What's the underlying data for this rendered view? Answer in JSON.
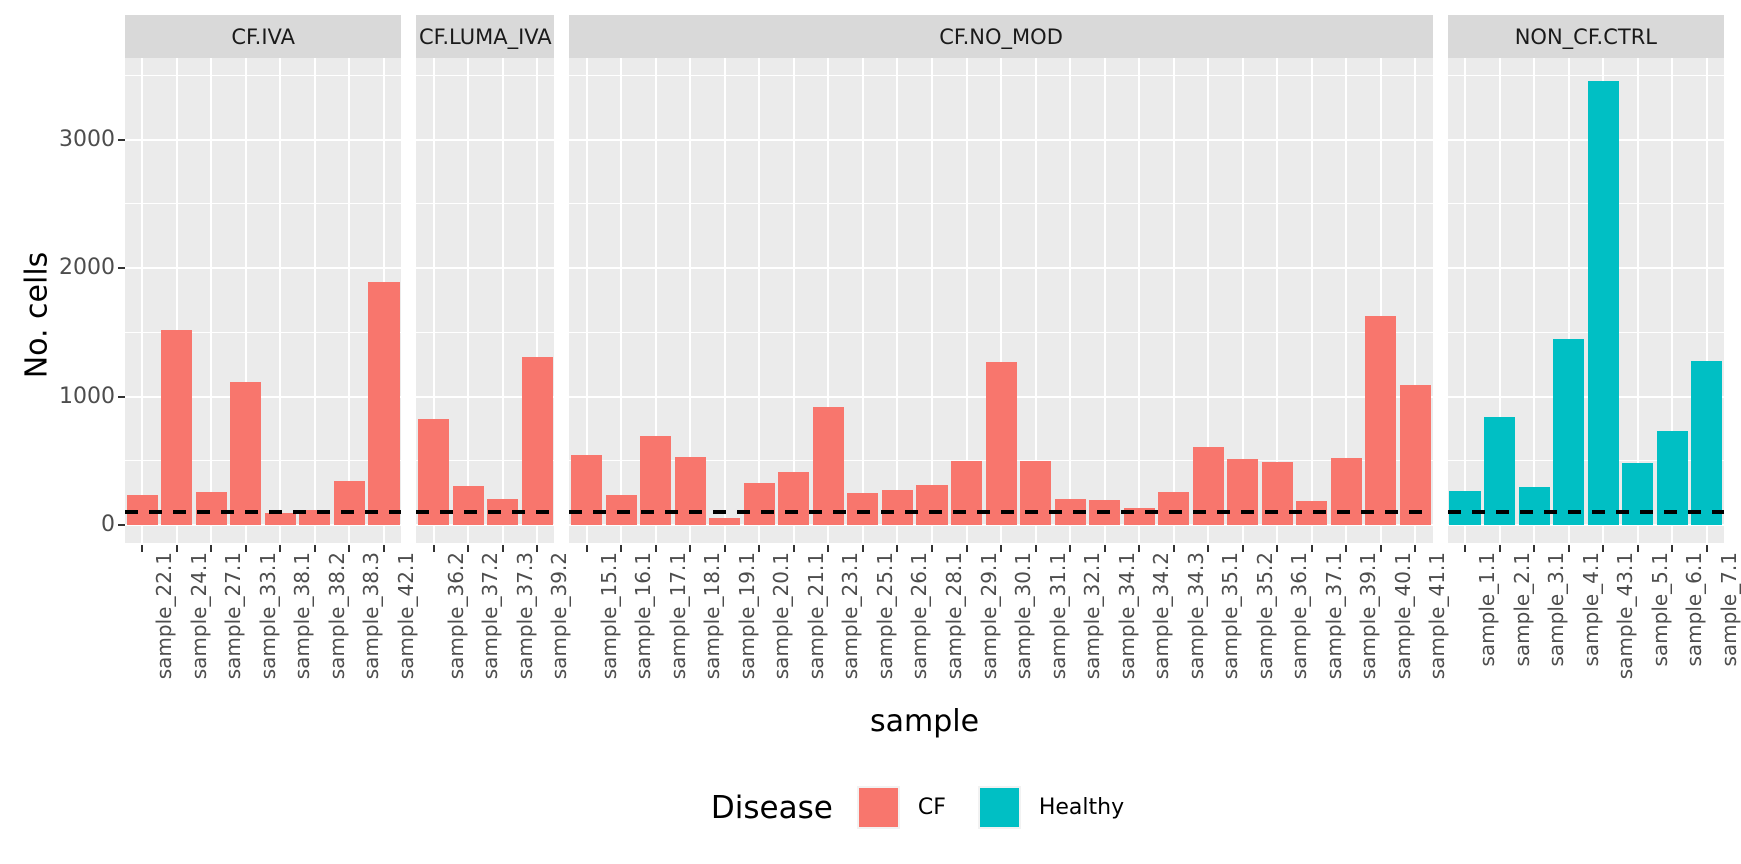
{
  "chart_data": {
    "type": "bar",
    "title": "",
    "xlabel": "sample",
    "ylabel": "No. cells",
    "y_ticks": [
      0,
      1000,
      2000,
      3000
    ],
    "y_minor_ticks": [
      500,
      1500,
      2500,
      3500
    ],
    "y_range": [
      -140,
      3635
    ],
    "grid": true,
    "dashed_hline": 100,
    "legend": {
      "title": "Disease",
      "position": "bottom",
      "items": [
        {
          "label": "CF",
          "color": "#F8766D"
        },
        {
          "label": "Healthy",
          "color": "#00BFC4"
        }
      ]
    },
    "facets": [
      {
        "label": "CF.IVA",
        "disease": "CF",
        "samples": [
          {
            "name": "sample_22.1",
            "value": 230
          },
          {
            "name": "sample_24.1",
            "value": 1520
          },
          {
            "name": "sample_27.1",
            "value": 260
          },
          {
            "name": "sample_33.1",
            "value": 1110
          },
          {
            "name": "sample_38.1",
            "value": 95
          },
          {
            "name": "sample_38.2",
            "value": 115
          },
          {
            "name": "sample_38.3",
            "value": 340
          },
          {
            "name": "sample_42.1",
            "value": 1890
          }
        ]
      },
      {
        "label": "CF.LUMA_IVA",
        "disease": "CF",
        "samples": [
          {
            "name": "sample_36.2",
            "value": 825
          },
          {
            "name": "sample_37.2",
            "value": 300
          },
          {
            "name": "sample_37.3",
            "value": 200
          },
          {
            "name": "sample_39.2",
            "value": 1305
          }
        ]
      },
      {
        "label": "CF.NO_MOD",
        "disease": "CF",
        "samples": [
          {
            "name": "sample_15.1",
            "value": 545
          },
          {
            "name": "sample_16.1",
            "value": 235
          },
          {
            "name": "sample_17.1",
            "value": 690
          },
          {
            "name": "sample_18.1",
            "value": 530
          },
          {
            "name": "sample_19.1",
            "value": 55
          },
          {
            "name": "sample_20.1",
            "value": 325
          },
          {
            "name": "sample_21.1",
            "value": 410
          },
          {
            "name": "sample_23.1",
            "value": 920
          },
          {
            "name": "sample_25.1",
            "value": 250
          },
          {
            "name": "sample_26.1",
            "value": 270
          },
          {
            "name": "sample_28.1",
            "value": 310
          },
          {
            "name": "sample_29.1",
            "value": 500
          },
          {
            "name": "sample_30.1",
            "value": 1270
          },
          {
            "name": "sample_31.1",
            "value": 500
          },
          {
            "name": "sample_32.1",
            "value": 200
          },
          {
            "name": "sample_34.1",
            "value": 195
          },
          {
            "name": "sample_34.2",
            "value": 135
          },
          {
            "name": "sample_34.3",
            "value": 255
          },
          {
            "name": "sample_35.1",
            "value": 605
          },
          {
            "name": "sample_35.2",
            "value": 515
          },
          {
            "name": "sample_36.1",
            "value": 490
          },
          {
            "name": "sample_37.1",
            "value": 185
          },
          {
            "name": "sample_39.1",
            "value": 520
          },
          {
            "name": "sample_40.1",
            "value": 1630
          },
          {
            "name": "sample_41.1",
            "value": 1090
          }
        ]
      },
      {
        "label": "NON_CF.CTRL",
        "disease": "Healthy",
        "samples": [
          {
            "name": "sample_1.1",
            "value": 265
          },
          {
            "name": "sample_2.1",
            "value": 840
          },
          {
            "name": "sample_3.1",
            "value": 295
          },
          {
            "name": "sample_4.1",
            "value": 1450
          },
          {
            "name": "sample_43.1",
            "value": 3455
          },
          {
            "name": "sample_5.1",
            "value": 480
          },
          {
            "name": "sample_6.1",
            "value": 730
          },
          {
            "name": "sample_7.1",
            "value": 1275
          }
        ]
      }
    ],
    "disease_colors": {
      "CF": "#F8766D",
      "Healthy": "#00BFC4"
    }
  },
  "style_colors": {
    "panel_bg": "#EBEBEB",
    "strip_bg": "#D9D9D9",
    "grid": "#FFFFFF",
    "tick": "#333333",
    "tick_label": "#4D4D4D",
    "dashed_line": "#000000"
  }
}
